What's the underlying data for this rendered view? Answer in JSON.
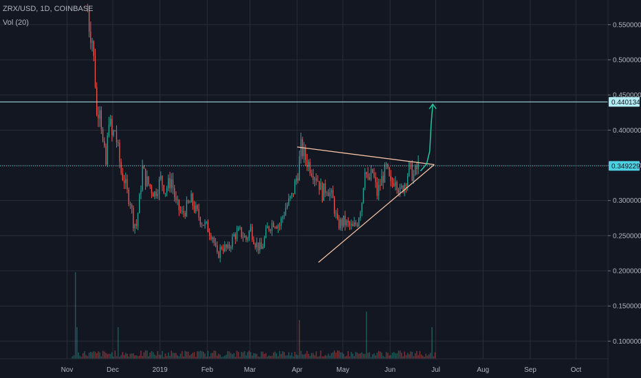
{
  "header": {
    "symbol_line": "ZRX/USD, 1D, COINBASE",
    "volume_label": "Vol (20)"
  },
  "colors": {
    "background": "#131722",
    "grid": "#2a2e39",
    "up": "#26a69a",
    "down": "#ef5350",
    "price_line": "#4dd0e1",
    "horizontal_line": "#b2ebf2",
    "triangle_line": "#f5c2a4",
    "projection_arrow": "#26c6a0"
  },
  "chart_data": {
    "type": "candlestick",
    "title": "ZRX/USD, 1D, COINBASE",
    "y_axis": {
      "ticks": [
        0.55,
        0.5,
        0.45,
        0.4,
        0.35,
        0.3,
        0.25,
        0.2,
        0.15,
        0.1
      ],
      "tick_labels": [
        "0.550000",
        "0.500000",
        "0.450000",
        "0.400000",
        "0.350000",
        "0.300000",
        "0.250000",
        "0.200000",
        "0.150000",
        "0.100000"
      ],
      "range": [
        0.075,
        0.585
      ],
      "side": "right"
    },
    "x_axis": {
      "tick_labels": [
        "Nov",
        "Dec",
        "2019",
        "Feb",
        "Mar",
        "Apr",
        "May",
        "Jun",
        "Jul",
        "Aug",
        "Sep",
        "Oct"
      ],
      "tick_dates": [
        "2018-11-01",
        "2018-12-01",
        "2019-01-01",
        "2019-02-01",
        "2019-03-01",
        "2019-04-01",
        "2019-05-01",
        "2019-06-01",
        "2019-07-01",
        "2019-08-01",
        "2019-09-01",
        "2019-10-01"
      ],
      "range": [
        "2018-09-18",
        "2019-10-22"
      ]
    },
    "grid": true,
    "price_labels": [
      {
        "value": 0.440134,
        "text": "0.440134",
        "style": "horizontal-line"
      },
      {
        "value": 0.349229,
        "text": "0.349229",
        "style": "current-price"
      }
    ],
    "price_path": [
      [
        "2018-11-14",
        0.57
      ],
      [
        "2018-11-15",
        0.55
      ],
      [
        "2018-11-17",
        0.53
      ],
      [
        "2018-11-19",
        0.47
      ],
      [
        "2018-11-20",
        0.42
      ],
      [
        "2018-11-22",
        0.44
      ],
      [
        "2018-11-24",
        0.38
      ],
      [
        "2018-11-26",
        0.35
      ],
      [
        "2018-11-28",
        0.42
      ],
      [
        "2018-11-30",
        0.39
      ],
      [
        "2018-12-02",
        0.4
      ],
      [
        "2018-12-04",
        0.37
      ],
      [
        "2018-12-06",
        0.34
      ],
      [
        "2018-12-08",
        0.33
      ],
      [
        "2018-12-10",
        0.31
      ],
      [
        "2018-12-12",
        0.3
      ],
      [
        "2018-12-14",
        0.27
      ],
      [
        "2018-12-16",
        0.265
      ],
      [
        "2018-12-18",
        0.3
      ],
      [
        "2018-12-20",
        0.345
      ],
      [
        "2018-12-22",
        0.33
      ],
      [
        "2018-12-25",
        0.32
      ],
      [
        "2018-12-28",
        0.31
      ],
      [
        "2019-01-01",
        0.33
      ],
      [
        "2019-01-04",
        0.315
      ],
      [
        "2019-01-08",
        0.33
      ],
      [
        "2019-01-11",
        0.295
      ],
      [
        "2019-01-15",
        0.28
      ],
      [
        "2019-01-18",
        0.29
      ],
      [
        "2019-01-21",
        0.3
      ],
      [
        "2019-01-24",
        0.285
      ],
      [
        "2019-01-28",
        0.27
      ],
      [
        "2019-02-01",
        0.26
      ],
      [
        "2019-02-04",
        0.25
      ],
      [
        "2019-02-07",
        0.22
      ],
      [
        "2019-02-10",
        0.235
      ],
      [
        "2019-02-14",
        0.23
      ],
      [
        "2019-02-18",
        0.25
      ],
      [
        "2019-02-22",
        0.255
      ],
      [
        "2019-02-26",
        0.245
      ],
      [
        "2019-03-01",
        0.26
      ],
      [
        "2019-03-04",
        0.24
      ],
      [
        "2019-03-08",
        0.23
      ],
      [
        "2019-03-12",
        0.26
      ],
      [
        "2019-03-16",
        0.27
      ],
      [
        "2019-03-20",
        0.265
      ],
      [
        "2019-03-24",
        0.29
      ],
      [
        "2019-03-28",
        0.305
      ],
      [
        "2019-04-01",
        0.34
      ],
      [
        "2019-04-03",
        0.375
      ],
      [
        "2019-04-06",
        0.36
      ],
      [
        "2019-04-10",
        0.345
      ],
      [
        "2019-04-14",
        0.33
      ],
      [
        "2019-04-17",
        0.31
      ],
      [
        "2019-04-20",
        0.32
      ],
      [
        "2019-04-24",
        0.3
      ],
      [
        "2019-04-27",
        0.265
      ],
      [
        "2019-05-01",
        0.27
      ],
      [
        "2019-05-04",
        0.265
      ],
      [
        "2019-05-07",
        0.26
      ],
      [
        "2019-05-10",
        0.27
      ],
      [
        "2019-05-13",
        0.3
      ],
      [
        "2019-05-15",
        0.35
      ],
      [
        "2019-05-17",
        0.325
      ],
      [
        "2019-05-20",
        0.34
      ],
      [
        "2019-05-23",
        0.31
      ],
      [
        "2019-05-26",
        0.33
      ],
      [
        "2019-05-29",
        0.345
      ],
      [
        "2019-06-01",
        0.32
      ],
      [
        "2019-06-04",
        0.335
      ],
      [
        "2019-06-07",
        0.31
      ],
      [
        "2019-06-10",
        0.325
      ],
      [
        "2019-06-13",
        0.345
      ],
      [
        "2019-06-16",
        0.335
      ],
      [
        "2019-06-19",
        0.349229
      ]
    ],
    "annotations": {
      "horizontal_line": {
        "value": 0.440134
      },
      "current_price_line": {
        "value": 0.349229
      },
      "triangle_upper": [
        [
          "2019-04-01",
          0.376
        ],
        [
          "2019-06-30",
          0.351
        ]
      ],
      "triangle_lower": [
        [
          "2019-04-15",
          0.212
        ],
        [
          "2019-06-30",
          0.351
        ]
      ],
      "projection_arrow": [
        [
          "2019-06-21",
          0.342
        ],
        [
          "2019-06-25",
          0.352
        ],
        [
          "2019-06-27",
          0.37
        ],
        [
          "2019-06-28",
          0.41
        ],
        [
          "2019-06-29",
          0.437
        ]
      ]
    },
    "volume": {
      "label": "Vol (20)",
      "spikes": [
        {
          "date": "2018-11-06",
          "value": 0.198
        },
        {
          "date": "2018-11-07",
          "value": 0.12
        },
        {
          "date": "2018-12-04",
          "value": 0.12
        },
        {
          "date": "2019-04-02",
          "value": 0.13
        },
        {
          "date": "2019-05-16",
          "value": 0.142
        },
        {
          "date": "2019-06-28",
          "value": 0.12
        }
      ],
      "window": [
        "2018-11-04",
        "2019-06-30"
      ],
      "base": 0.075,
      "typical_high": 0.087
    }
  }
}
